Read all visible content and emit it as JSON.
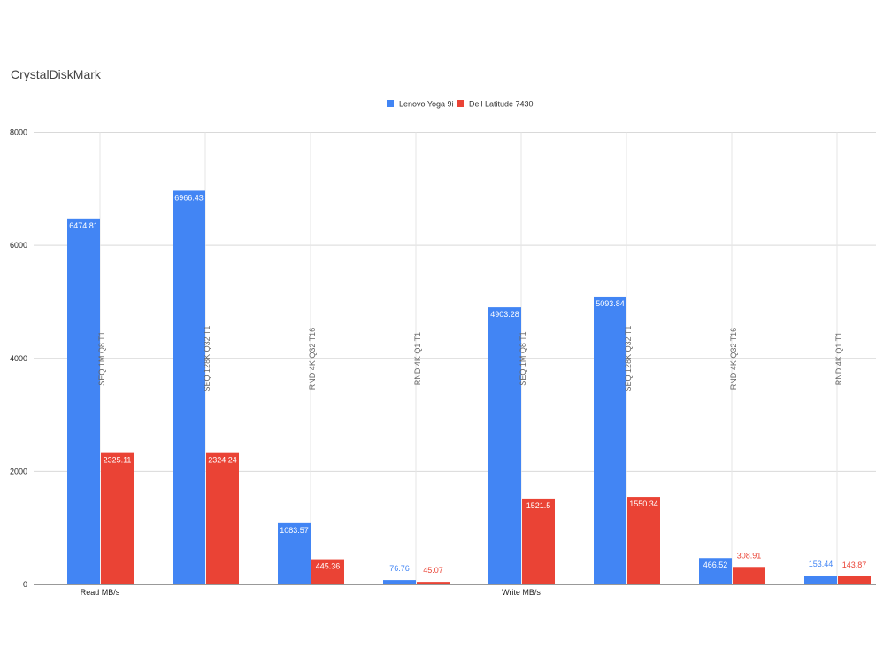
{
  "chart_data": {
    "type": "bar",
    "title": "CrystalDiskMark",
    "group_labels": [
      "Read MB/s",
      "Write MB/s"
    ],
    "categories": [
      "SEQ 1M Q8 T1",
      "SEQ 128K Q32 T1",
      "RND 4K Q32 T16",
      "RND 4K Q1 T1",
      "SEQ 1M Q8 T1",
      "SEQ 128K Q32 T1",
      "RND 4K Q32 T16",
      "RND 4K Q1 T1"
    ],
    "series": [
      {
        "name": "Lenovo Yoga 9i",
        "color": "#4285f4",
        "values": [
          6474.81,
          6966.43,
          1083.57,
          76.76,
          4903.28,
          5093.84,
          466.52,
          153.44
        ],
        "labels": [
          "6474.81",
          "6966.43",
          "1083.57",
          "76.76",
          "4903.28",
          "5093.84",
          "466.52",
          "153.44"
        ]
      },
      {
        "name": "Dell Latitude 7430",
        "color": "#ea4335",
        "values": [
          2325.11,
          2324.24,
          445.36,
          45.07,
          1521.5,
          1550.34,
          308.91,
          143.87
        ],
        "labels": [
          "2325.11",
          "2324.24",
          "445.36",
          "45.07",
          "1521.5",
          "1550.34",
          "308.91",
          "143.87"
        ]
      }
    ],
    "yticks": [
      "0",
      "2000",
      "4000",
      "6000",
      "8000"
    ],
    "ylim": [
      0,
      8000
    ],
    "legend_position": "top",
    "grid": true
  }
}
